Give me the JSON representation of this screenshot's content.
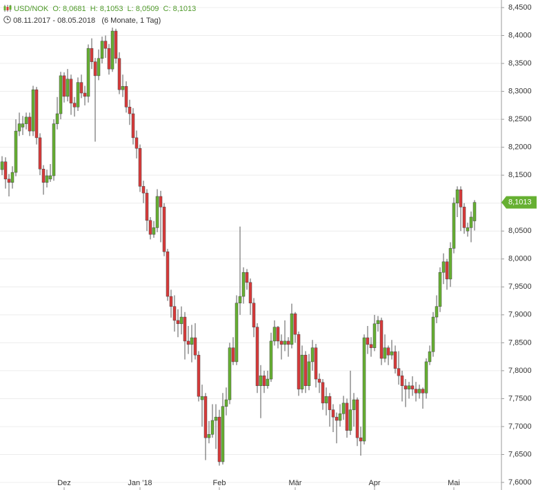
{
  "chart_data": {
    "type": "candlestick",
    "title": "USD/NOK",
    "ohlc_label": "O: 8,0681  H: 8,1053  L: 8,0509  C: 8,1013",
    "date_range": "08.11.2017 - 08.05.2018",
    "period": "(6 Monate, 1 Tag)",
    "last_price_label": "8,1013",
    "up_color": "#66b032",
    "down_color": "#d83a3a",
    "grid": true,
    "categories": [
      null,
      null,
      null,
      null,
      null,
      null,
      null,
      null,
      null,
      null,
      null,
      null,
      null,
      null,
      null,
      null,
      null,
      null,
      "Dez",
      null,
      null,
      null,
      null,
      null,
      null,
      null,
      null,
      null,
      null,
      null,
      null,
      null,
      null,
      null,
      null,
      null,
      null,
      null,
      null,
      null,
      "Jan '18",
      null,
      null,
      null,
      null,
      null,
      null,
      null,
      null,
      null,
      null,
      null,
      null,
      null,
      null,
      null,
      null,
      null,
      null,
      null,
      null,
      null,
      null,
      "Feb",
      null,
      null,
      null,
      null,
      null,
      null,
      null,
      null,
      null,
      null,
      null,
      null,
      null,
      null,
      null,
      null,
      null,
      null,
      null,
      null,
      null,
      "Mär",
      null,
      null,
      null,
      null,
      null,
      null,
      null,
      null,
      null,
      null,
      null,
      null,
      null,
      null,
      null,
      null,
      null,
      null,
      null,
      null,
      null,
      null,
      "Apr",
      null,
      null,
      null,
      null,
      null,
      null,
      null,
      null,
      null,
      null,
      null,
      null,
      null,
      null,
      null,
      null,
      null,
      null,
      null,
      null,
      null,
      null,
      "Mai",
      null,
      null,
      null,
      null,
      null,
      null
    ],
    "open": [
      8.16,
      8.174,
      8.143,
      8.137,
      8.155,
      8.229,
      8.236,
      8.242,
      8.254,
      8.229,
      8.303,
      8.217,
      8.161,
      8.137,
      8.143,
      8.149,
      8.242,
      8.26,
      8.328,
      8.291,
      8.322,
      8.279,
      8.272,
      8.316,
      8.297,
      8.291,
      8.377,
      8.353,
      8.328,
      8.359,
      8.39,
      8.377,
      8.34,
      8.408,
      8.359,
      8.303,
      8.309,
      8.272,
      8.26,
      8.217,
      8.198,
      8.13,
      8.118,
      8.069,
      8.044,
      8.056,
      8.112,
      8.093,
      8.013,
      7.933,
      7.915,
      7.89,
      7.884,
      7.896,
      7.853,
      7.847,
      7.859,
      7.828,
      7.748,
      7.754,
      7.68,
      7.686,
      7.711,
      7.717,
      7.637,
      7.736,
      7.748,
      7.841,
      7.816,
      7.921,
      7.933,
      7.976,
      7.958,
      7.921,
      7.878,
      7.773,
      7.791,
      7.773,
      7.785,
      7.853,
      7.878,
      7.853,
      7.847,
      7.853,
      7.847,
      7.902,
      7.865,
      7.767,
      7.828,
      7.773,
      7.816,
      7.841,
      7.785,
      7.779,
      7.742,
      7.754,
      7.73,
      7.717,
      7.711,
      7.723,
      7.742,
      7.693,
      7.73,
      7.748,
      7.68,
      7.674,
      7.859,
      7.847,
      7.841,
      7.884,
      7.89,
      7.822,
      7.841,
      7.828,
      7.834,
      7.804,
      7.791,
      7.773,
      7.767,
      7.773,
      7.767,
      7.76,
      7.767,
      7.76,
      7.816,
      7.834,
      7.896,
      7.915,
      7.976,
      7.995,
      7.964,
      8.019,
      8.1,
      8.124,
      8.093,
      8.05,
      8.056,
      8.0681
    ],
    "high": [
      8.184,
      8.182,
      8.152,
      8.166,
      8.25,
      8.262,
      8.256,
      8.262,
      8.262,
      8.31,
      8.308,
      8.225,
      8.168,
      8.16,
      8.17,
      8.25,
      8.29,
      8.335,
      8.334,
      8.34,
      8.33,
      8.29,
      8.325,
      8.33,
      8.31,
      8.384,
      8.395,
      8.36,
      8.375,
      8.398,
      8.4,
      8.385,
      8.414,
      8.412,
      8.37,
      8.33,
      8.318,
      8.285,
      8.27,
      8.23,
      8.205,
      8.14,
      8.125,
      8.075,
      8.068,
      8.125,
      8.122,
      8.1,
      8.018,
      7.945,
      7.935,
      7.91,
      7.915,
      7.905,
      7.88,
      7.882,
      7.885,
      7.835,
      7.775,
      7.76,
      7.71,
      7.74,
      7.74,
      7.73,
      7.76,
      7.77,
      7.85,
      7.86,
      7.935,
      8.058,
      7.985,
      7.982,
      7.965,
      7.93,
      7.885,
      7.81,
      7.8,
      7.8,
      7.868,
      7.89,
      7.88,
      7.865,
      7.89,
      7.86,
      7.92,
      7.905,
      7.87,
      7.845,
      7.835,
      7.83,
      7.855,
      7.848,
      7.795,
      7.785,
      7.77,
      7.76,
      7.74,
      7.725,
      7.74,
      7.755,
      7.75,
      7.8,
      7.76,
      7.752,
      7.7,
      7.865,
      7.88,
      7.86,
      7.9,
      7.898,
      7.895,
      7.865,
      7.845,
      7.855,
      7.845,
      7.835,
      7.8,
      7.785,
      7.78,
      7.79,
      7.78,
      7.775,
      7.77,
      7.822,
      7.845,
      7.905,
      7.935,
      7.985,
      8.01,
      8.0,
      8.03,
      8.11,
      8.13,
      8.13,
      8.1,
      8.065,
      8.085,
      8.1053
    ],
    "low": [
      8.15,
      8.126,
      8.112,
      8.126,
      8.148,
      8.22,
      8.222,
      8.232,
      8.22,
      8.22,
      8.205,
      8.15,
      8.115,
      8.128,
      8.138,
      8.14,
      8.232,
      8.25,
      8.28,
      8.282,
      8.258,
      8.255,
      8.265,
      8.288,
      8.275,
      8.28,
      8.34,
      8.21,
      8.32,
      8.35,
      8.36,
      8.33,
      8.335,
      8.35,
      8.295,
      8.29,
      8.262,
      8.24,
      8.205,
      8.18,
      8.12,
      8.1,
      8.05,
      8.035,
      8.038,
      8.048,
      8.03,
      8.005,
      7.925,
      7.895,
      7.87,
      7.86,
      7.865,
      7.82,
      7.83,
      7.815,
      7.82,
      7.745,
      7.7,
      7.64,
      7.67,
      7.68,
      7.66,
      7.63,
      7.632,
      7.72,
      7.74,
      7.81,
      7.81,
      7.9,
      7.92,
      7.945,
      7.9,
      7.86,
      7.76,
      7.715,
      7.76,
      7.768,
      7.78,
      7.845,
      7.84,
      7.82,
      7.835,
      7.825,
      7.84,
      7.85,
      7.755,
      7.76,
      7.76,
      7.765,
      7.8,
      7.77,
      7.76,
      7.73,
      7.72,
      7.7,
      7.69,
      7.67,
      7.7,
      7.712,
      7.68,
      7.685,
      7.7,
      7.665,
      7.648,
      7.668,
      7.83,
      7.825,
      7.835,
      7.87,
      7.81,
      7.815,
      7.81,
      7.82,
      7.795,
      7.775,
      7.745,
      7.735,
      7.75,
      7.755,
      7.745,
      7.75,
      7.732,
      7.75,
      7.81,
      7.825,
      7.885,
      7.905,
      7.955,
      7.945,
      7.95,
      8.01,
      8.075,
      8.05,
      8.045,
      8.04,
      8.03,
      8.0509
    ],
    "close": [
      8.174,
      8.143,
      8.137,
      8.155,
      8.229,
      8.242,
      8.242,
      8.254,
      8.229,
      8.303,
      8.217,
      8.161,
      8.137,
      8.149,
      8.149,
      8.242,
      8.26,
      8.328,
      8.291,
      8.322,
      8.279,
      8.272,
      8.316,
      8.297,
      8.291,
      8.377,
      8.353,
      8.328,
      8.359,
      8.39,
      8.377,
      8.34,
      8.408,
      8.359,
      8.303,
      8.309,
      8.272,
      8.26,
      8.217,
      8.198,
      8.13,
      8.118,
      8.069,
      8.044,
      8.056,
      8.112,
      8.093,
      8.013,
      7.933,
      7.915,
      7.89,
      7.884,
      7.896,
      7.853,
      7.847,
      7.859,
      7.828,
      7.754,
      7.754,
      7.68,
      7.686,
      7.711,
      7.717,
      7.637,
      7.736,
      7.748,
      7.841,
      7.816,
      7.921,
      7.933,
      7.976,
      7.958,
      7.921,
      7.878,
      7.773,
      7.791,
      7.773,
      7.785,
      7.853,
      7.878,
      7.853,
      7.847,
      7.853,
      7.847,
      7.902,
      7.865,
      7.767,
      7.828,
      7.773,
      7.816,
      7.841,
      7.785,
      7.779,
      7.742,
      7.754,
      7.73,
      7.717,
      7.711,
      7.723,
      7.742,
      7.693,
      7.73,
      7.748,
      7.68,
      7.674,
      7.859,
      7.847,
      7.841,
      7.884,
      7.89,
      7.822,
      7.841,
      7.828,
      7.834,
      7.804,
      7.791,
      7.773,
      7.767,
      7.773,
      7.767,
      7.76,
      7.767,
      7.76,
      7.816,
      7.834,
      7.896,
      7.915,
      7.976,
      7.995,
      7.964,
      8.019,
      8.1,
      8.124,
      8.093,
      8.056,
      8.056,
      8.075,
      8.1013
    ],
    "ylim": [
      7.6,
      8.45
    ],
    "yticks": [
      {
        "value": 7.6,
        "label": "7,6000"
      },
      {
        "value": 7.65,
        "label": "7,6500"
      },
      {
        "value": 7.7,
        "label": "7,7000"
      },
      {
        "value": 7.75,
        "label": "7,7500"
      },
      {
        "value": 7.8,
        "label": "7,8000"
      },
      {
        "value": 7.85,
        "label": "7,8500"
      },
      {
        "value": 7.9,
        "label": "7,9000"
      },
      {
        "value": 7.95,
        "label": "7,9500"
      },
      {
        "value": 8.0,
        "label": "8,0000"
      },
      {
        "value": 8.05,
        "label": "8,0500"
      },
      {
        "value": 8.1,
        "label": "8,1000"
      },
      {
        "value": 8.15,
        "label": "8,1500"
      },
      {
        "value": 8.2,
        "label": "8,2000"
      },
      {
        "value": 8.25,
        "label": "8,2500"
      },
      {
        "value": 8.3,
        "label": "8,3000"
      },
      {
        "value": 8.35,
        "label": "8,3500"
      },
      {
        "value": 8.4,
        "label": "8,4000"
      },
      {
        "value": 8.45,
        "label": "8,4500"
      }
    ]
  }
}
